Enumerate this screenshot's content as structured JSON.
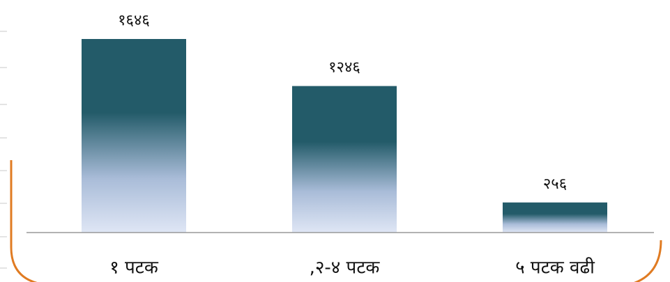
{
  "chart_data": {
    "type": "bar",
    "categories": [
      "१ पटक",
      ",२-४ पटक",
      "५ पटक वढी"
    ],
    "values": [
      1646,
      1246,
      256
    ],
    "value_labels": [
      "१६४६",
      "१२४६",
      "२५६"
    ],
    "color": "#235b69"
  }
}
